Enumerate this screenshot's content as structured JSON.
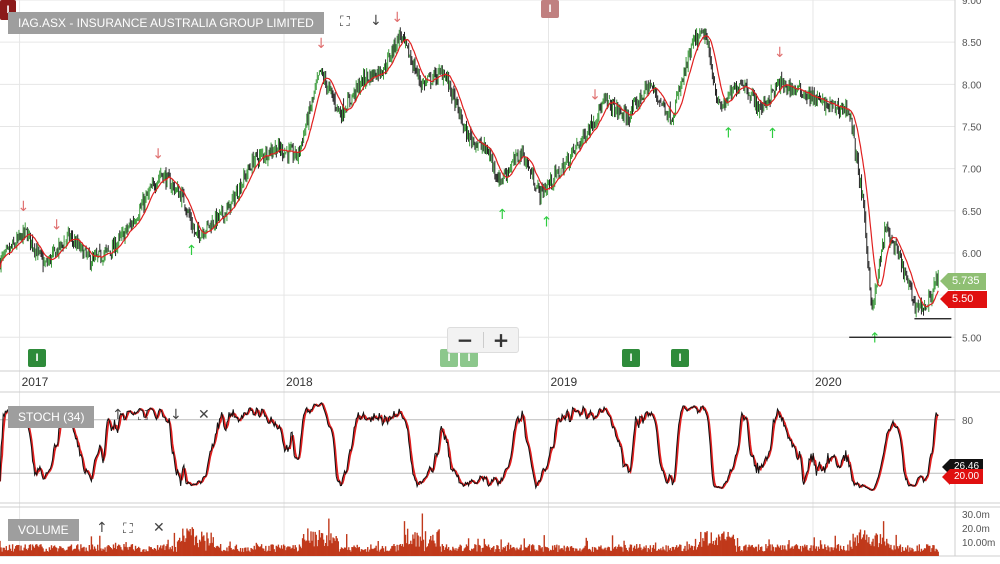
{
  "colors": {
    "grid": "#e6e6e6",
    "up": "#3a9a3a",
    "down": "#222222",
    "ma": "#e02020",
    "stoch_k": "#111111",
    "stoch_d": "#e02020",
    "volume": "#c0391b",
    "buy_arrow": "#2ecc40",
    "sell_arrow": "#e07070",
    "marker_green": "#2e8b3a",
    "marker_red": "#c08080",
    "tag_green": "#8fbf73",
    "tag_red": "#e01010"
  },
  "main_pane": {
    "title": "IAG.ASX - INSURANCE AUSTRALIA GROUP LIMITED",
    "marker_letter": "I",
    "top_marker_letter": "I",
    "zoom_out": "−",
    "zoom_in": "+"
  },
  "stoch_pane": {
    "title": "STOCH (34)"
  },
  "volume_pane": {
    "title": "VOLUME"
  },
  "price_tags": {
    "last": "5.735",
    "ma": "5.50"
  },
  "stoch_tags": {
    "k": "26.46",
    "d": "20.00"
  },
  "chart_data": [
    {
      "type": "candlestick",
      "name": "price",
      "ylim": [
        4.6,
        9.0
      ],
      "y_ticks": [
        "5.00",
        "5.50",
        "6.00",
        "6.50",
        "7.00",
        "7.50",
        "8.00",
        "8.50",
        "9.00"
      ],
      "x_ticks": [
        "2017",
        "2018",
        "2019",
        "2020"
      ],
      "x_range": [
        "2016-12-05",
        "2020-07-15"
      ],
      "close_series": [
        [
          "2016-12-05",
          5.9
        ],
        [
          "2017-01-10",
          6.25
        ],
        [
          "2017-02-05",
          5.85
        ],
        [
          "2017-03-10",
          6.2
        ],
        [
          "2017-04-10",
          5.9
        ],
        [
          "2017-05-10",
          6.05
        ],
        [
          "2017-06-05",
          6.35
        ],
        [
          "2017-07-15",
          6.95
        ],
        [
          "2017-08-15",
          6.65
        ],
        [
          "2017-09-01",
          6.2
        ],
        [
          "2017-10-15",
          6.5
        ],
        [
          "2017-11-20",
          7.1
        ],
        [
          "2017-12-20",
          7.25
        ],
        [
          "2018-01-20",
          7.15
        ],
        [
          "2018-02-20",
          8.15
        ],
        [
          "2018-03-20",
          7.65
        ],
        [
          "2018-04-20",
          8.05
        ],
        [
          "2018-05-20",
          8.2
        ],
        [
          "2018-06-10",
          8.6
        ],
        [
          "2018-07-10",
          8.0
        ],
        [
          "2018-08-10",
          8.15
        ],
        [
          "2018-09-10",
          7.4
        ],
        [
          "2018-10-10",
          7.2
        ],
        [
          "2018-10-25",
          6.85
        ],
        [
          "2018-11-25",
          7.2
        ],
        [
          "2018-12-20",
          6.7
        ],
        [
          "2019-01-20",
          7.0
        ],
        [
          "2019-02-20",
          7.4
        ],
        [
          "2019-03-20",
          7.8
        ],
        [
          "2019-04-20",
          7.6
        ],
        [
          "2019-05-20",
          8.0
        ],
        [
          "2019-06-20",
          7.6
        ],
        [
          "2019-07-20",
          8.5
        ],
        [
          "2019-08-05",
          8.6
        ],
        [
          "2019-08-25",
          7.7
        ],
        [
          "2019-09-25",
          8.05
        ],
        [
          "2019-10-20",
          7.7
        ],
        [
          "2019-11-15",
          8.0
        ],
        [
          "2019-12-20",
          7.9
        ],
        [
          "2020-01-20",
          7.75
        ],
        [
          "2020-02-20",
          7.7
        ],
        [
          "2020-03-10",
          6.6
        ],
        [
          "2020-03-23",
          5.3
        ],
        [
          "2020-04-10",
          6.3
        ],
        [
          "2020-05-01",
          5.9
        ],
        [
          "2020-05-20",
          5.4
        ],
        [
          "2020-06-05",
          5.35
        ],
        [
          "2020-06-22",
          5.735
        ]
      ],
      "sell_signals": [
        "2017-01-05",
        "2017-02-20",
        "2017-07-10",
        "2018-02-20",
        "2018-06-05",
        "2019-03-05",
        "2019-11-15"
      ],
      "buy_signals": [
        "2017-08-25",
        "2018-10-28",
        "2018-12-28",
        "2019-09-05",
        "2019-11-05",
        "2020-03-25"
      ],
      "hold_signals": [
        "2018-06-20"
      ],
      "support_levels": [
        {
          "from": "2020-02-20",
          "to": "2020-07-10",
          "value": 5.0
        },
        {
          "from": "2020-05-20",
          "to": "2020-07-10",
          "value": 5.22
        }
      ],
      "last": 5.735,
      "ma_last": 5.5,
      "markers": [
        {
          "date": "2017-01-25",
          "color": "green"
        },
        {
          "date": "2018-11-10",
          "color": "green"
        },
        {
          "date": "2018-11-28",
          "color": "green"
        },
        {
          "date": "2019-06-05",
          "color": "green"
        },
        {
          "date": "2019-08-15",
          "color": "green"
        },
        {
          "date": "2018-12-15",
          "color": "red",
          "position": "top"
        },
        {
          "date": "2016-12-05",
          "color": "darkred",
          "position": "top"
        }
      ]
    },
    {
      "type": "line",
      "name": "stoch",
      "ylim": [
        0,
        100
      ],
      "y_ticks": [
        "80",
        "20"
      ],
      "last_k": 26.46,
      "last_d": 20.0
    },
    {
      "type": "bar",
      "name": "volume",
      "y_ticks": [
        "30.0m",
        "20.0m",
        "10.00m"
      ],
      "spike_dates": [
        "2017-09-01",
        "2018-02-20",
        "2018-07-10",
        "2019-08-20",
        "2020-03-20"
      ]
    }
  ]
}
